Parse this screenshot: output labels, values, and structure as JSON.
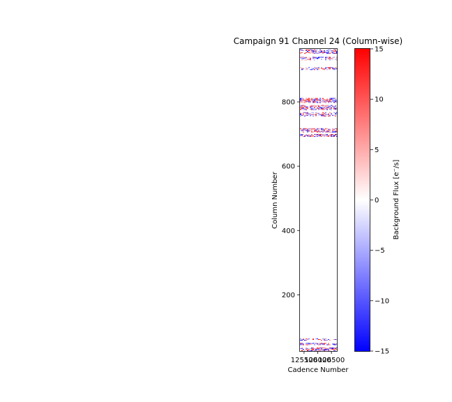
{
  "chart_data": {
    "type": "heatmap",
    "title": "Campaign 91 Channel 24 (Column-wise)",
    "xlabel": "Cadence Number",
    "ylabel": "Column Number",
    "xticks": [
      "125500",
      "126000",
      "126500"
    ],
    "yticks": [
      200,
      400,
      600,
      800
    ],
    "xlim": [
      125350,
      126700
    ],
    "ylim": [
      25,
      965
    ],
    "colorbar": {
      "label": "Background Flux [e$^-$/s]",
      "label_display": "Background Flux [e⁻/s]",
      "ticks": [
        15,
        10,
        5,
        0,
        -5,
        -10,
        -15
      ],
      "range": [
        -15,
        15
      ],
      "colormap": [
        "#0000ff",
        "#ffffff",
        "#ff0000"
      ]
    },
    "bands": [
      {
        "columns": [
          27,
          36
        ],
        "density": "high"
      },
      {
        "columns": [
          44,
          50
        ],
        "density": "high"
      },
      {
        "columns": [
          58,
          64
        ],
        "density": "medium"
      },
      {
        "columns": [
          692,
          700
        ],
        "density": "high"
      },
      {
        "columns": [
          705,
          718
        ],
        "density": "high"
      },
      {
        "columns": [
          755,
          768
        ],
        "density": "medium"
      },
      {
        "columns": [
          775,
          790
        ],
        "density": "high"
      },
      {
        "columns": [
          798,
          812
        ],
        "density": "high"
      },
      {
        "columns": [
          900,
          908
        ],
        "density": "medium"
      },
      {
        "columns": [
          930,
          940
        ],
        "density": "medium"
      },
      {
        "columns": [
          952,
          963
        ],
        "density": "high"
      }
    ],
    "grid": false
  }
}
